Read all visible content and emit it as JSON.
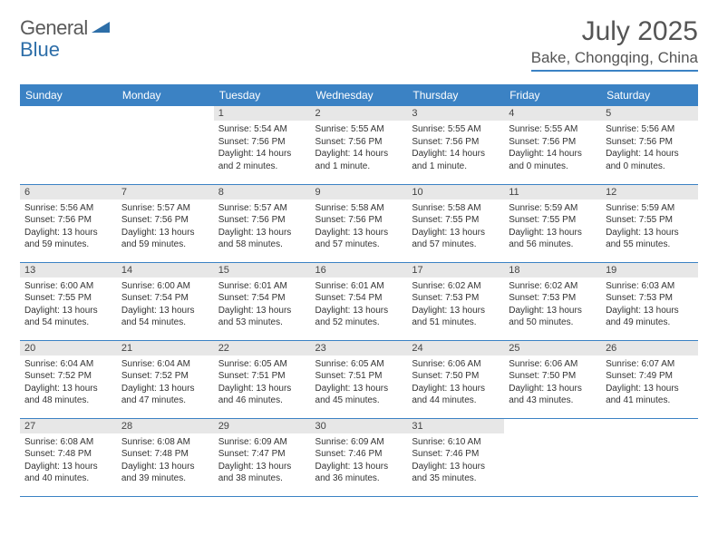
{
  "logo": {
    "left": "General",
    "right": "Blue"
  },
  "title": "July 2025",
  "location": "Bake, Chongqing, China",
  "colors": {
    "header_bg": "#3b82c4",
    "header_fg": "#ffffff",
    "daynum_bg": "#e7e7e7",
    "border": "#3b82c4"
  },
  "days_of_week": [
    "Sunday",
    "Monday",
    "Tuesday",
    "Wednesday",
    "Thursday",
    "Friday",
    "Saturday"
  ],
  "weeks": [
    [
      null,
      null,
      {
        "n": "1",
        "sr": "5:54 AM",
        "ss": "7:56 PM",
        "dl": "14 hours and 2 minutes."
      },
      {
        "n": "2",
        "sr": "5:55 AM",
        "ss": "7:56 PM",
        "dl": "14 hours and 1 minute."
      },
      {
        "n": "3",
        "sr": "5:55 AM",
        "ss": "7:56 PM",
        "dl": "14 hours and 1 minute."
      },
      {
        "n": "4",
        "sr": "5:55 AM",
        "ss": "7:56 PM",
        "dl": "14 hours and 0 minutes."
      },
      {
        "n": "5",
        "sr": "5:56 AM",
        "ss": "7:56 PM",
        "dl": "14 hours and 0 minutes."
      }
    ],
    [
      {
        "n": "6",
        "sr": "5:56 AM",
        "ss": "7:56 PM",
        "dl": "13 hours and 59 minutes."
      },
      {
        "n": "7",
        "sr": "5:57 AM",
        "ss": "7:56 PM",
        "dl": "13 hours and 59 minutes."
      },
      {
        "n": "8",
        "sr": "5:57 AM",
        "ss": "7:56 PM",
        "dl": "13 hours and 58 minutes."
      },
      {
        "n": "9",
        "sr": "5:58 AM",
        "ss": "7:56 PM",
        "dl": "13 hours and 57 minutes."
      },
      {
        "n": "10",
        "sr": "5:58 AM",
        "ss": "7:55 PM",
        "dl": "13 hours and 57 minutes."
      },
      {
        "n": "11",
        "sr": "5:59 AM",
        "ss": "7:55 PM",
        "dl": "13 hours and 56 minutes."
      },
      {
        "n": "12",
        "sr": "5:59 AM",
        "ss": "7:55 PM",
        "dl": "13 hours and 55 minutes."
      }
    ],
    [
      {
        "n": "13",
        "sr": "6:00 AM",
        "ss": "7:55 PM",
        "dl": "13 hours and 54 minutes."
      },
      {
        "n": "14",
        "sr": "6:00 AM",
        "ss": "7:54 PM",
        "dl": "13 hours and 54 minutes."
      },
      {
        "n": "15",
        "sr": "6:01 AM",
        "ss": "7:54 PM",
        "dl": "13 hours and 53 minutes."
      },
      {
        "n": "16",
        "sr": "6:01 AM",
        "ss": "7:54 PM",
        "dl": "13 hours and 52 minutes."
      },
      {
        "n": "17",
        "sr": "6:02 AM",
        "ss": "7:53 PM",
        "dl": "13 hours and 51 minutes."
      },
      {
        "n": "18",
        "sr": "6:02 AM",
        "ss": "7:53 PM",
        "dl": "13 hours and 50 minutes."
      },
      {
        "n": "19",
        "sr": "6:03 AM",
        "ss": "7:53 PM",
        "dl": "13 hours and 49 minutes."
      }
    ],
    [
      {
        "n": "20",
        "sr": "6:04 AM",
        "ss": "7:52 PM",
        "dl": "13 hours and 48 minutes."
      },
      {
        "n": "21",
        "sr": "6:04 AM",
        "ss": "7:52 PM",
        "dl": "13 hours and 47 minutes."
      },
      {
        "n": "22",
        "sr": "6:05 AM",
        "ss": "7:51 PM",
        "dl": "13 hours and 46 minutes."
      },
      {
        "n": "23",
        "sr": "6:05 AM",
        "ss": "7:51 PM",
        "dl": "13 hours and 45 minutes."
      },
      {
        "n": "24",
        "sr": "6:06 AM",
        "ss": "7:50 PM",
        "dl": "13 hours and 44 minutes."
      },
      {
        "n": "25",
        "sr": "6:06 AM",
        "ss": "7:50 PM",
        "dl": "13 hours and 43 minutes."
      },
      {
        "n": "26",
        "sr": "6:07 AM",
        "ss": "7:49 PM",
        "dl": "13 hours and 41 minutes."
      }
    ],
    [
      {
        "n": "27",
        "sr": "6:08 AM",
        "ss": "7:48 PM",
        "dl": "13 hours and 40 minutes."
      },
      {
        "n": "28",
        "sr": "6:08 AM",
        "ss": "7:48 PM",
        "dl": "13 hours and 39 minutes."
      },
      {
        "n": "29",
        "sr": "6:09 AM",
        "ss": "7:47 PM",
        "dl": "13 hours and 38 minutes."
      },
      {
        "n": "30",
        "sr": "6:09 AM",
        "ss": "7:46 PM",
        "dl": "13 hours and 36 minutes."
      },
      {
        "n": "31",
        "sr": "6:10 AM",
        "ss": "7:46 PM",
        "dl": "13 hours and 35 minutes."
      },
      null,
      null
    ]
  ],
  "labels": {
    "sunrise": "Sunrise:",
    "sunset": "Sunset:",
    "daylight": "Daylight:"
  }
}
